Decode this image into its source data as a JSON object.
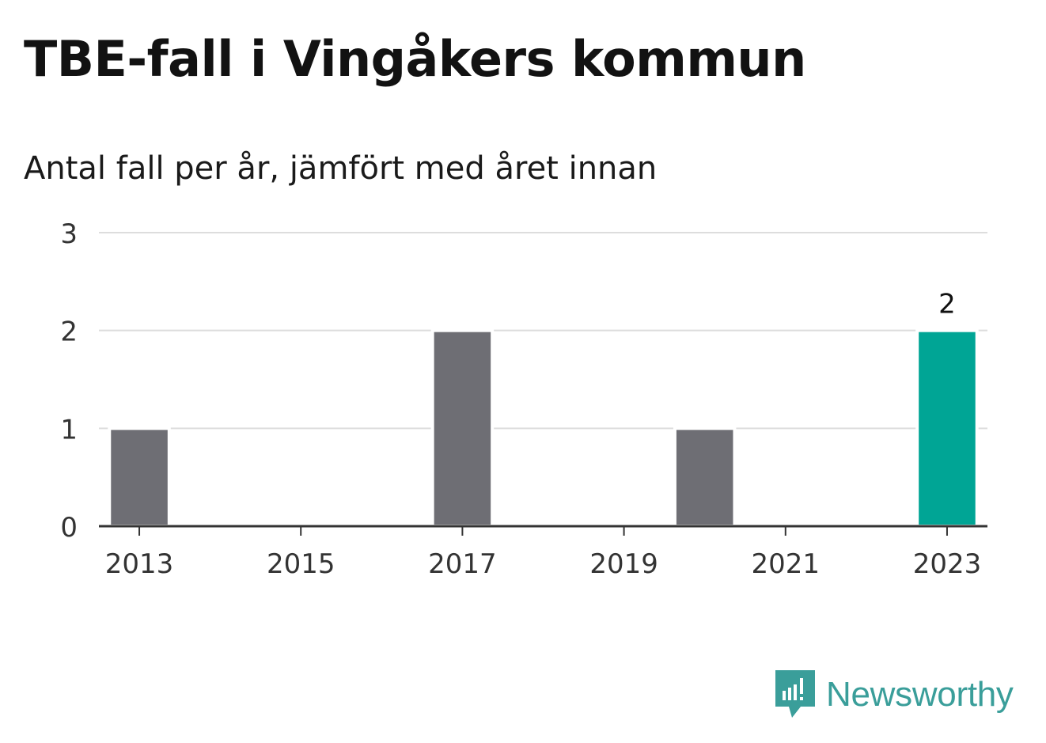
{
  "title": "TBE-fall i Vingåkers kommun",
  "subtitle": "Antal fall per år, jämfört med året innan",
  "brand": {
    "name": "Newsworthy",
    "icon": "newsworthy-logo-icon",
    "color": "#3a9e9a"
  },
  "chart_data": {
    "type": "bar",
    "categories": [
      "2013",
      "2014",
      "2015",
      "2016",
      "2017",
      "2018",
      "2019",
      "2020",
      "2021",
      "2022",
      "2023"
    ],
    "values": [
      1,
      0,
      0,
      0,
      2,
      0,
      0,
      1,
      0,
      0,
      2
    ],
    "highlight_index": 10,
    "data_labels": [
      {
        "category": "2023",
        "label": "2"
      }
    ],
    "xticks": [
      "2013",
      "2015",
      "2017",
      "2019",
      "2021",
      "2023"
    ],
    "yticks": [
      0,
      1,
      2,
      3
    ],
    "ylim": [
      0,
      3
    ],
    "grid": true,
    "colors": {
      "bar": "#6e6e74",
      "highlight": "#00a595",
      "grid": "#dddddd",
      "axis": "#333333"
    },
    "xlabel": "",
    "ylabel": ""
  }
}
